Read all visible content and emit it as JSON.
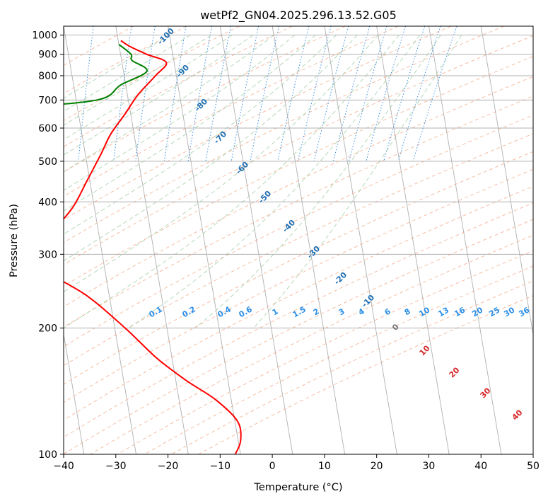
{
  "chart_data": {
    "type": "skew-t log-p diagram",
    "title": "wetPf2_GN04.2025.296.13.52.G05",
    "xlabel": "Temperature (°C)",
    "ylabel": "Pressure (hPa)",
    "xlim": [
      -40,
      50
    ],
    "ylim_hpa": [
      1050,
      100
    ],
    "x_ticks": [
      -40,
      -30,
      -20,
      -10,
      0,
      10,
      20,
      30,
      40,
      50
    ],
    "y_ticks": [
      1000,
      900,
      800,
      700,
      600,
      500,
      400,
      300,
      200,
      100
    ],
    "grid": true,
    "series": [
      {
        "name": "Temperature",
        "color": "#ff0000",
        "points": [
          [
            -21,
            100
          ],
          [
            -19.5,
            108
          ],
          [
            -19.5,
            120
          ],
          [
            -23,
            135
          ],
          [
            -28,
            150
          ],
          [
            -33,
            170
          ],
          [
            -38,
            200
          ],
          [
            -44.5,
            240
          ],
          [
            -52,
            275
          ],
          [
            -53,
            285
          ],
          [
            -51,
            300
          ],
          [
            -48.5,
            340
          ],
          [
            -44,
            390
          ],
          [
            -40.5,
            450
          ],
          [
            -37,
            520
          ],
          [
            -34.5,
            580
          ],
          [
            -31,
            650
          ],
          [
            -28,
            720
          ],
          [
            -24,
            800
          ],
          [
            -21.5,
            860
          ],
          [
            -25,
            900
          ],
          [
            -28,
            940
          ],
          [
            -29.5,
            970
          ]
        ]
      },
      {
        "name": "Dewpoint",
        "color": "#008000",
        "points": [
          [
            -56,
            100
          ],
          [
            -60,
            110
          ],
          [
            -63,
            120
          ],
          [
            -69,
            135
          ],
          [
            -74,
            155
          ],
          [
            -79,
            180
          ],
          [
            -81,
            200
          ],
          [
            -85,
            225
          ],
          [
            -89,
            250
          ],
          [
            -82,
            270
          ],
          [
            -69,
            280
          ],
          [
            -60,
            300
          ],
          [
            -59.5,
            350
          ],
          [
            -57,
            410
          ],
          [
            -53.5,
            500
          ],
          [
            -60,
            560
          ],
          [
            -70,
            600
          ],
          [
            -100,
            620
          ],
          [
            -75,
            640
          ],
          [
            -53,
            670
          ],
          [
            -36,
            700
          ],
          [
            -31,
            760
          ],
          [
            -25.5,
            820
          ],
          [
            -28,
            870
          ],
          [
            -28,
            900
          ],
          [
            -30,
            950
          ]
        ]
      }
    ],
    "dry_adiabat_labels": [
      "-100",
      "-90",
      "-80",
      "-70",
      "-60",
      "-50",
      "-40",
      "-30",
      "-20",
      "-10"
    ],
    "mixing_ratio_labels": [
      "0.1",
      "0.2",
      "0.4",
      "0.6",
      "1",
      "1.5",
      "2",
      "3",
      "4",
      "6",
      "8",
      "10",
      "13",
      "16",
      "20",
      "25",
      "30",
      "36"
    ],
    "moist_adiabat_labels": [
      "0",
      "10",
      "20",
      "30",
      "40"
    ]
  }
}
